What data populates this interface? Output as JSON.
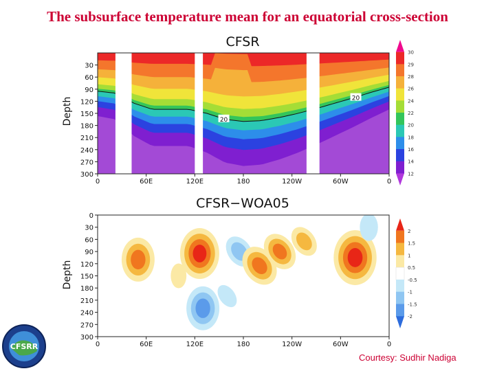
{
  "slide_title": "The subsurface temperature mean for an equatorial cross-section",
  "credit": "Courtesy: Sudhir Nadiga",
  "logo_text": "CFSRR",
  "chart_data": [
    {
      "type": "heatmap",
      "title": "CFSR",
      "ylabel": "Depth",
      "x_ticks": [
        "0",
        "60E",
        "120E",
        "180",
        "120W",
        "60W",
        "0"
      ],
      "y_ticks": [
        "30",
        "60",
        "90",
        "120",
        "150",
        "180",
        "210",
        "240",
        "270",
        "300"
      ],
      "xlim": [
        0,
        360
      ],
      "ylim": [
        300,
        0
      ],
      "colorbar_labels": [
        "30",
        "29",
        "28",
        "26",
        "24",
        "22",
        "20",
        "18",
        "16",
        "14",
        "12"
      ],
      "colorbar_colors": [
        "#f0098e",
        "#ec2828",
        "#f4762c",
        "#f5b13a",
        "#f0e43a",
        "#a5dd36",
        "#33c55b",
        "#2bc8b5",
        "#2d8eea",
        "#2b42e0",
        "#7f1fd0",
        "#b138dc"
      ],
      "contour_label": "20",
      "contour_depths": [
        95,
        100,
        125,
        140,
        140,
        140,
        150,
        165,
        170,
        168,
        160,
        150,
        138,
        125,
        112,
        98,
        85
      ],
      "masked_ranges": [
        [
          22,
          42
        ],
        [
          120,
          130
        ],
        [
          258,
          274
        ]
      ]
    },
    {
      "type": "heatmap",
      "title": "CFSR−WOA05",
      "ylabel": "Depth",
      "x_ticks": [
        "0",
        "60E",
        "120E",
        "180",
        "120W",
        "60W",
        "0"
      ],
      "y_ticks": [
        "0",
        "30",
        "60",
        "90",
        "120",
        "150",
        "180",
        "210",
        "240",
        "270",
        "300"
      ],
      "xlim": [
        0,
        360
      ],
      "ylim": [
        300,
        0
      ],
      "colorbar_labels": [
        "2",
        "1.5",
        "1",
        "0.5",
        "-0.5",
        "-1",
        "-1.5",
        "-2"
      ],
      "colorbar_colors": [
        "#e82617",
        "#f0761f",
        "#f5b840",
        "#fbe9a5",
        "#ffffff",
        "#c4e8f8",
        "#8fc6f2",
        "#5b9bea",
        "#2d6cdc"
      ],
      "anomalies": [
        {
          "lon": 50,
          "depth": 110,
          "value": 2.0
        },
        {
          "lon": 126,
          "depth": 95,
          "value": 2.5
        },
        {
          "lon": 130,
          "depth": 230,
          "value": -2.0
        },
        {
          "lon": 175,
          "depth": 90,
          "value": -1.2
        },
        {
          "lon": 200,
          "depth": 125,
          "value": 1.8
        },
        {
          "lon": 225,
          "depth": 90,
          "value": 1.6
        },
        {
          "lon": 255,
          "depth": 65,
          "value": 1.1
        },
        {
          "lon": 318,
          "depth": 105,
          "value": 2.8
        },
        {
          "lon": 335,
          "depth": 30,
          "value": -0.8
        },
        {
          "lon": 100,
          "depth": 150,
          "value": 0.6
        },
        {
          "lon": 160,
          "depth": 200,
          "value": -0.6
        }
      ]
    }
  ]
}
